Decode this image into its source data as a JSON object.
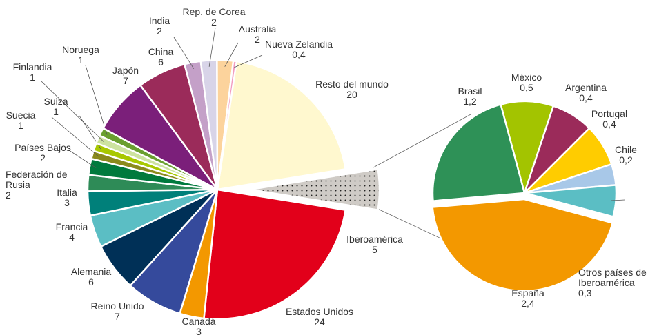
{
  "chart_data": [
    {
      "type": "pie",
      "categories": [
        "Resto del mundo",
        "Iberoamérica",
        "Estados Unidos",
        "Canadá",
        "Reino Unido",
        "Alemania",
        "Francia",
        "Italia",
        "Federación de Rusia",
        "Países Bajos",
        "Suecia",
        "Suiza",
        "Finlandia",
        "Noruega",
        "Japón",
        "China",
        "India",
        "Rep. de Corea",
        "Australia",
        "Nueva Zelandia"
      ],
      "values": [
        20,
        5,
        24,
        3,
        7,
        6,
        4,
        3,
        2,
        2,
        1,
        1,
        1,
        1,
        7,
        6,
        2,
        2,
        2,
        0.4
      ],
      "value_labels": [
        "20",
        "5",
        "24",
        "3",
        "7",
        "6",
        "4",
        "3",
        "2",
        "2",
        "1",
        "1",
        "1",
        "1",
        "7",
        "6",
        "2",
        "2",
        "2",
        "0,4"
      ],
      "colors": [
        "#fff8cf",
        "#cfcbc6",
        "#e2001a",
        "#f39800",
        "#354a9c",
        "#003057",
        "#5bbec4",
        "#00807a",
        "#2e8b57",
        "#007a3d",
        "#8a8a1c",
        "#a8c800",
        "#cde3a0",
        "#6a9f2f",
        "#7b1f7a",
        "#9b2b5a",
        "#c4a0c8",
        "#d8d4e8",
        "#fcd39c",
        "#f29cc0"
      ],
      "dotted_slice": 1,
      "exploded_slice": 1
    },
    {
      "type": "pie",
      "categories": [
        "México",
        "Argentina",
        "Portugal",
        "Chile",
        "Otros países de Iberoamérica",
        "España",
        "Brasil"
      ],
      "values": [
        0.5,
        0.4,
        0.4,
        0.2,
        0.3,
        2.4,
        1.2
      ],
      "value_labels": [
        "0,5",
        "0,4",
        "0,4",
        "0,2",
        "0,3",
        "2,4",
        "1,2"
      ],
      "colors": [
        "#a3c400",
        "#9b2b5a",
        "#ffcc00",
        "#a8c8e8",
        "#5bbec4",
        "#f39800",
        "#2e9157"
      ],
      "exploded_slice": 5
    }
  ]
}
